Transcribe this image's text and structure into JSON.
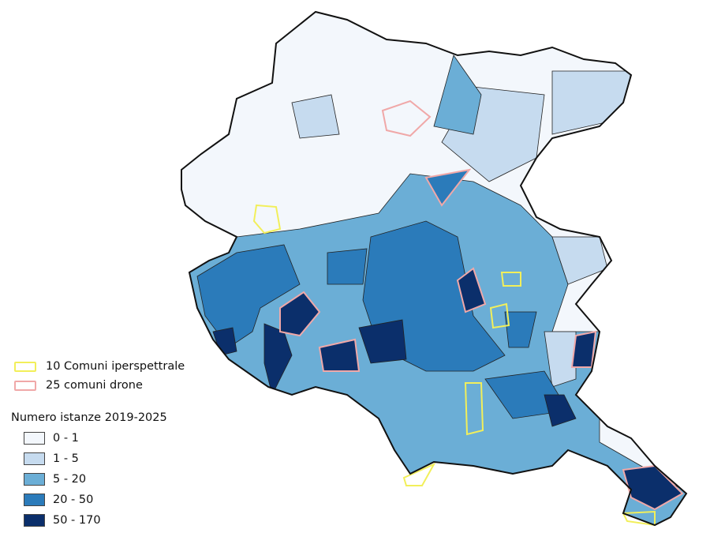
{
  "legend": {
    "overlays": [
      {
        "label": "10 Comuni iperspettrale",
        "color": "#f2ef5a"
      },
      {
        "label": "25 comuni drone",
        "color": "#f0a8a8"
      }
    ],
    "title": "Numero istanze 2019-2025",
    "classes": [
      {
        "label": "0 - 1",
        "color": "#f3f7fc"
      },
      {
        "label": "1 - 5",
        "color": "#c6dbef"
      },
      {
        "label": "5 - 20",
        "color": "#6baed6"
      },
      {
        "label": "20 - 50",
        "color": "#2b7bba"
      },
      {
        "label": "50 - 170",
        "color": "#0b2f6b"
      }
    ]
  }
}
